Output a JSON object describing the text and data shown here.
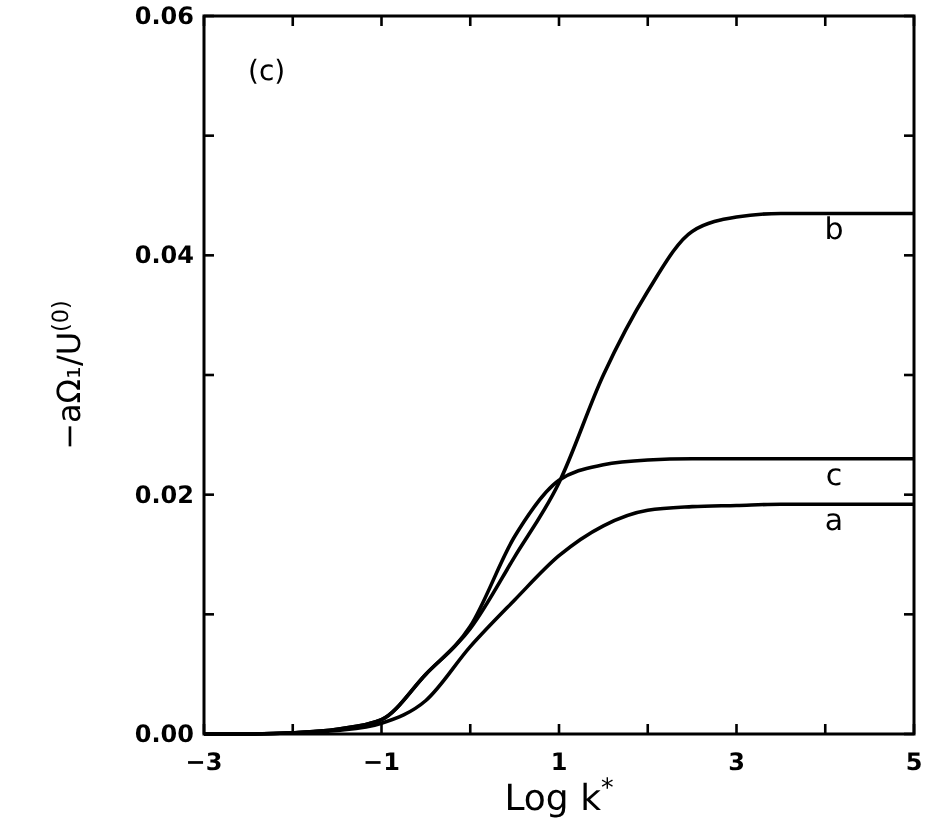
{
  "chart_data": {
    "type": "line",
    "xlabel": "Log k$^{*}$",
    "ylabel": "−aΩ₁/U$^{(0)}$",
    "xlim": [
      -3,
      5
    ],
    "ylim": [
      0,
      0.06
    ],
    "xticks": [
      -3,
      {
        "value": -2,
        "label": null
      },
      -1,
      {
        "value": 0,
        "label": null
      },
      1,
      {
        "value": 2,
        "label": null
      },
      3,
      {
        "value": 4,
        "label": null
      },
      5
    ],
    "yticks": [
      {
        "value": 0,
        "label": "0.00"
      },
      {
        "value": 0.01,
        "label": null
      },
      0.02,
      {
        "value": 0.03,
        "label": null
      },
      0.04,
      {
        "value": 0.05,
        "label": null
      },
      0.06
    ],
    "grid": false,
    "line_style": "solid",
    "x": [
      -3,
      -2.5,
      -2,
      -1.5,
      -1,
      -0.5,
      0,
      0.5,
      1,
      1.5,
      2,
      2.5,
      3,
      3.5,
      4,
      5
    ],
    "series": [
      {
        "name": "a",
        "color": "#000000",
        "values": [
          0,
          0,
          0.0001,
          0.0003,
          0.0009,
          0.0028,
          0.0073,
          0.0112,
          0.0149,
          0.0174,
          0.0187,
          0.019,
          0.0191,
          0.0192,
          0.0192,
          0.0192
        ]
      },
      {
        "name": "b",
        "color": "#000000",
        "values": [
          0,
          0,
          0.0001,
          0.0004,
          0.0012,
          0.005,
          0.0088,
          0.0148,
          0.021,
          0.03,
          0.037,
          0.042,
          0.0432,
          0.0435,
          0.0435,
          0.0435
        ]
      },
      {
        "name": "c",
        "color": "#000000",
        "values": [
          0,
          0,
          0.0001,
          0.0004,
          0.0012,
          0.005,
          0.009,
          0.0165,
          0.0212,
          0.0225,
          0.0229,
          0.023,
          0.023,
          0.023,
          0.023,
          0.023
        ]
      }
    ],
    "annotations": [
      "(c)"
    ]
  }
}
